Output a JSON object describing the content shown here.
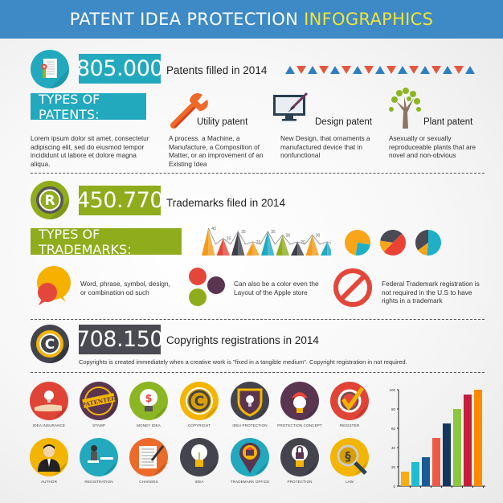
{
  "header": {
    "title_main": "PATENT IDEA PROTECTION",
    "title_highlight": "INFOGRAPHICS"
  },
  "colors": {
    "header_bg": "#3d8ac6",
    "highlight": "#f2e33a",
    "teal": "#23a9be",
    "olive": "#8fac1c",
    "dark": "#4a4a52",
    "red": "#e4473a",
    "orange": "#f49b1a",
    "yellow": "#f3b500"
  },
  "patents": {
    "count": "805.000",
    "label": "Patents filled in 2014",
    "icon": "document-certificate-icon",
    "triangle_pattern": [
      "up",
      "down",
      "up",
      "down",
      "up",
      "down",
      "up",
      "down",
      "up",
      "down",
      "up",
      "down",
      "up",
      "down",
      "up",
      "down",
      "up"
    ],
    "types_title": "TYPES OF PATENTS:",
    "intro": "Lorem ipsum dolor sit amet, consectetur adipiscing elit, sed do eiusmod tempor incididunt ut labore et dolore magna aliqua.",
    "types": [
      {
        "name": "Utility patent",
        "icon": "wrench-icon",
        "desc": "A process. a Machine, a Manufacture, a Composition of Matter, or an improvement of an Existing Idea"
      },
      {
        "name": "Design patent",
        "icon": "monitor-brush-icon",
        "desc": "New Design, that ornaments a manufactured device that in nonfunctional"
      },
      {
        "name": "Plant patent",
        "icon": "tree-icon",
        "desc": "Asexually or sexually reproduceable plants that are novel and non-obvious"
      }
    ]
  },
  "trademarks": {
    "count": "450.770",
    "label": "Trademarks filed in 2014",
    "icon": "registered-icon",
    "types_title": "TYPES OF TRADEMARKS:",
    "items": [
      {
        "icon": "speech-bubbles-icon",
        "text": "Word, phrase, symbol, design, or combination od such"
      },
      {
        "icon": "color-dots-icon",
        "text": "Can also be a color even the Layout of the Apple store"
      },
      {
        "icon": "prohibited-icon",
        "text": "Federal Trademark registration is not required in the U.S to have rights in a trademark"
      }
    ]
  },
  "copyrights": {
    "count": "708.150",
    "label": "Copyrights registrations in 2014",
    "icon": "copyright-icon",
    "note": "Copyrights is created immediately when a creative work is \"fixed in a tangible medium\". Copyright registration in not required."
  },
  "icons_row1": [
    {
      "label": "IDEA INSURANCE",
      "bg": "#e04436",
      "icon": "hand-bulb-icon"
    },
    {
      "label": "STAMP",
      "bg": "#5a3550",
      "icon": "patented-stamp-icon"
    },
    {
      "label": "MONEY IDEA",
      "bg": "#8cb524",
      "icon": "dollar-bulb-icon"
    },
    {
      "label": "COPYRIGHT",
      "bg": "#f3b500",
      "icon": "copyright-icon"
    },
    {
      "label": "IDEA PROTECTION",
      "bg": "#44444e",
      "icon": "shield-bulb-icon"
    },
    {
      "label": "PROTECTION CONCEPT",
      "bg": "#5a3550",
      "icon": "umbrella-bulb-icon"
    },
    {
      "label": "REGISTER",
      "bg": "#e04436",
      "icon": "checkmark-icon"
    }
  ],
  "icons_row2": [
    {
      "label": "AUTHOR",
      "bg": "#f3b500",
      "icon": "businessman-icon"
    },
    {
      "label": "REGISTRATION",
      "bg": "#23a9be",
      "icon": "desk-person-icon"
    },
    {
      "label": "CHANGES",
      "bg": "#ec6a2a",
      "icon": "document-pen-icon"
    },
    {
      "label": "IDEA",
      "bg": "#44444e",
      "icon": "lightbulb-icon"
    },
    {
      "label": "TRADEMARK OFFICE",
      "bg": "#23a9be",
      "icon": "map-pin-building-icon"
    },
    {
      "label": "PROTECTION",
      "bg": "#44444e",
      "icon": "lock-bulb-icon"
    },
    {
      "label": "LAW",
      "bg": "#f3b500",
      "icon": "magnifier-section-icon"
    }
  ],
  "chart_data": [
    {
      "type": "area",
      "title": "",
      "description": "Triangle peak chart with zigzag line and value labels",
      "categories": [
        "1",
        "2",
        "3",
        "4",
        "5",
        "6",
        "7",
        "8",
        "9"
      ],
      "values": [
        40,
        25,
        35,
        20,
        35,
        30,
        20,
        30,
        20
      ],
      "colors": [
        "#f49b1a",
        "#e4473a",
        "#3f3f48",
        "#f49b1a",
        "#1fa9c2",
        "#8fac1c",
        "#3f3f48",
        "#f49b1a",
        "#1fa9c2"
      ]
    },
    {
      "type": "pie",
      "title": "",
      "pies": [
        {
          "slices": [
            {
              "color": "#f9a51a",
              "value": 75
            },
            {
              "color": "#1fb0c8",
              "value": 25
            }
          ]
        },
        {
          "slices": [
            {
              "color": "#4a4a55",
              "value": 35
            },
            {
              "color": "#ea4335",
              "value": 50
            },
            {
              "color": "#f9a51a",
              "value": 15
            }
          ]
        },
        {
          "slices": [
            {
              "color": "#1fb0c8",
              "value": 52
            },
            {
              "color": "#f9a51a",
              "value": 13
            },
            {
              "color": "#4a4a55",
              "value": 35
            }
          ]
        }
      ]
    },
    {
      "type": "bar",
      "title": "",
      "xlabel": "",
      "ylabel": "",
      "categories": [
        "1",
        "2",
        "3",
        "4",
        "5",
        "6",
        "7",
        "8"
      ],
      "values": [
        15,
        25,
        30,
        50,
        65,
        80,
        95,
        100
      ],
      "colors": [
        "#f9ad14",
        "#1fbcd2",
        "#1a5a96",
        "#ee5a45",
        "#13375f",
        "#8dc63f",
        "#c41e3a",
        "#ff8a00"
      ],
      "ylim": [
        0,
        100
      ],
      "yticks": [
        0,
        20,
        40,
        60,
        80,
        100
      ]
    }
  ]
}
